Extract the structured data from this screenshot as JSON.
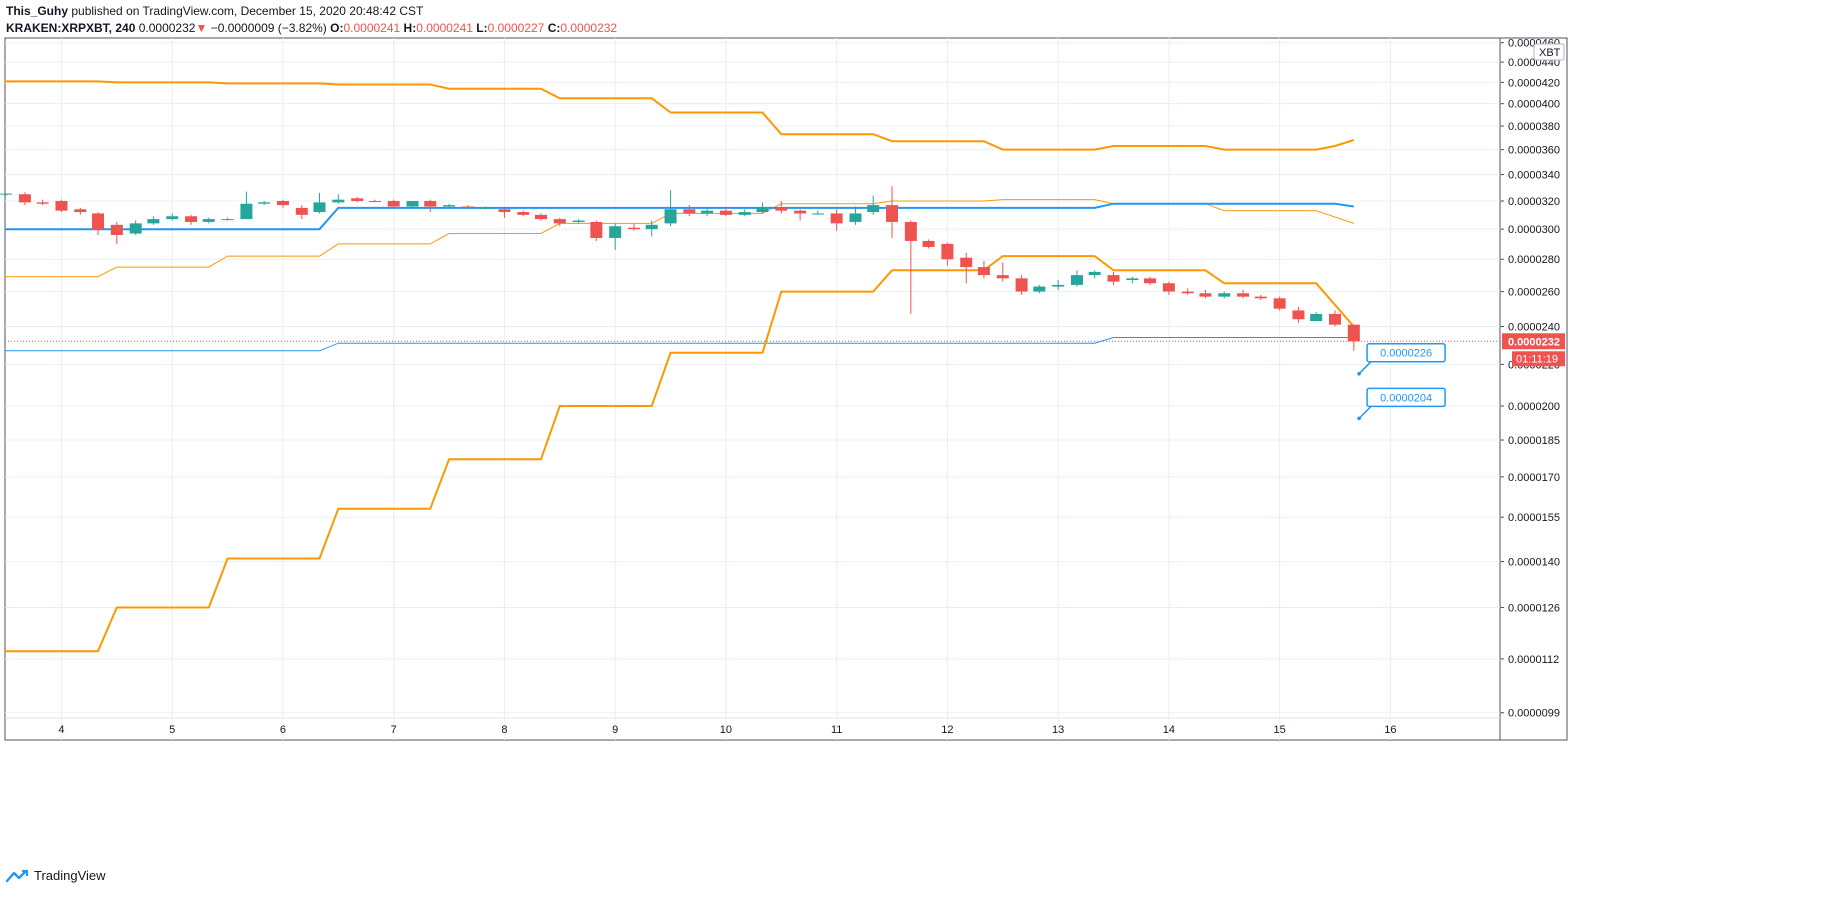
{
  "header": {
    "user": "This_Guhy",
    "published_text": "published on TradingView.com, December 15, 2020 20:48:42 CST",
    "symbol": "KRAKEN:XRPXBT, 240",
    "last": "0.0000232",
    "change_arrow": "▼",
    "change": "−0.0000009 (−3.82%)",
    "o_label": "O:",
    "o_value": "0.0000241",
    "h_label": "H:",
    "h_value": "0.0000241",
    "l_label": "L:",
    "l_value": "0.0000227",
    "c_label": "C:",
    "c_value": "0.0000232"
  },
  "footer": {
    "brand": "TradingView",
    "logo_icon": "tradingview-logo-icon"
  },
  "colors": {
    "up": "#26a69a",
    "down": "#ef5350",
    "orange": "#ff9800",
    "blue": "#2196f3",
    "grid": "#e8f0f3"
  },
  "chart_data": {
    "type": "candlestick",
    "currency_label": "XBT",
    "y_axis_ticks": [
      "0.0000460",
      "0.0000440",
      "0.0000420",
      "0.0000400",
      "0.0000380",
      "0.0000360",
      "0.0000340",
      "0.0000320",
      "0.0000300",
      "0.0000280",
      "0.0000260",
      "0.0000240",
      "0.0000220",
      "0.0000200",
      "0.0000185",
      "0.0000170",
      "0.0000155",
      "0.0000140",
      "0.0000126",
      "0.0000112",
      "0.0000099"
    ],
    "y_axis_tick_values": [
      4.6e-05,
      4.4e-05,
      4.2e-05,
      4e-05,
      3.8e-05,
      3.6e-05,
      3.4e-05,
      3.2e-05,
      3e-05,
      2.8e-05,
      2.6e-05,
      2.4e-05,
      2.2e-05,
      2e-05,
      1.85e-05,
      1.7e-05,
      1.55e-05,
      1.4e-05,
      1.26e-05,
      1.12e-05,
      9.9e-06
    ],
    "x_axis_ticks": [
      "4",
      "5",
      "6",
      "7",
      "8",
      "9",
      "10",
      "11",
      "12",
      "13",
      "14",
      "15",
      "16"
    ],
    "x_axis_tick_days": [
      4,
      5,
      6,
      7,
      8,
      9,
      10,
      11,
      12,
      13,
      14,
      15,
      16
    ],
    "log_scale": true,
    "grid": true,
    "x_range": [
      3.49,
      16.99
    ],
    "y_range": [
      9.3e-06,
      4.65e-05
    ],
    "last_price_label": "0.0000232",
    "countdown_label": "01:11:19",
    "annotations": [
      {
        "text": "0.0000226",
        "day": 15.88,
        "price": 2.26e-05
      },
      {
        "text": "0.0000204",
        "day": 15.88,
        "price": 2.04e-05
      }
    ],
    "candles": [
      {
        "d": 3.5,
        "o": 3.25e-05,
        "h": 3.255e-05,
        "l": 3.24e-05,
        "c": 3.255e-05
      },
      {
        "d": 3.67,
        "o": 3.25e-05,
        "h": 3.265e-05,
        "l": 3.17e-05,
        "c": 3.19e-05
      },
      {
        "d": 3.83,
        "o": 3.19e-05,
        "h": 3.21e-05,
        "l": 3.17e-05,
        "c": 3.18e-05
      },
      {
        "d": 4.0,
        "o": 3.2e-05,
        "h": 3.21e-05,
        "l": 3.12e-05,
        "c": 3.13e-05
      },
      {
        "d": 4.17,
        "o": 3.14e-05,
        "h": 3.15e-05,
        "l": 3.1e-05,
        "c": 3.12e-05
      },
      {
        "d": 4.33,
        "o": 3.11e-05,
        "h": 3.12e-05,
        "l": 2.96e-05,
        "c": 3e-05
      },
      {
        "d": 4.5,
        "o": 3.03e-05,
        "h": 3.05e-05,
        "l": 2.9e-05,
        "c": 2.96e-05
      },
      {
        "d": 4.67,
        "o": 2.97e-05,
        "h": 3.06e-05,
        "l": 2.96e-05,
        "c": 3.04e-05
      },
      {
        "d": 4.83,
        "o": 3.04e-05,
        "h": 3.09e-05,
        "l": 3.03e-05,
        "c": 3.07e-05
      },
      {
        "d": 5.0,
        "o": 3.07e-05,
        "h": 3.11e-05,
        "l": 3.06e-05,
        "c": 3.09e-05
      },
      {
        "d": 5.17,
        "o": 3.09e-05,
        "h": 3.1e-05,
        "l": 3.03e-05,
        "c": 3.05e-05
      },
      {
        "d": 5.33,
        "o": 3.05e-05,
        "h": 3.08e-05,
        "l": 3.04e-05,
        "c": 3.07e-05
      },
      {
        "d": 5.5,
        "o": 3.07e-05,
        "h": 3.08e-05,
        "l": 3.06e-05,
        "c": 3.065e-05
      },
      {
        "d": 5.67,
        "o": 3.07e-05,
        "h": 3.27e-05,
        "l": 3.07e-05,
        "c": 3.18e-05
      },
      {
        "d": 5.83,
        "o": 3.18e-05,
        "h": 3.2e-05,
        "l": 3.17e-05,
        "c": 3.19e-05
      },
      {
        "d": 6.0,
        "o": 3.2e-05,
        "h": 3.21e-05,
        "l": 3.15e-05,
        "c": 3.17e-05
      },
      {
        "d": 6.17,
        "o": 3.15e-05,
        "h": 3.17e-05,
        "l": 3.07e-05,
        "c": 3.1e-05
      },
      {
        "d": 6.33,
        "o": 3.12e-05,
        "h": 3.26e-05,
        "l": 3.11e-05,
        "c": 3.19e-05
      },
      {
        "d": 6.5,
        "o": 3.19e-05,
        "h": 3.25e-05,
        "l": 3.18e-05,
        "c": 3.21e-05
      },
      {
        "d": 6.67,
        "o": 3.22e-05,
        "h": 3.23e-05,
        "l": 3.19e-05,
        "c": 3.2e-05
      },
      {
        "d": 6.83,
        "o": 3.2e-05,
        "h": 3.21e-05,
        "l": 3.19e-05,
        "c": 3.195e-05
      },
      {
        "d": 7.0,
        "o": 3.2e-05,
        "h": 3.21e-05,
        "l": 3.15e-05,
        "c": 3.16e-05
      },
      {
        "d": 7.17,
        "o": 3.16e-05,
        "h": 3.2e-05,
        "l": 3.15e-05,
        "c": 3.2e-05
      },
      {
        "d": 7.33,
        "o": 3.2e-05,
        "h": 3.21e-05,
        "l": 3.12e-05,
        "c": 3.16e-05
      },
      {
        "d": 7.5,
        "o": 3.16e-05,
        "h": 3.18e-05,
        "l": 3.15e-05,
        "c": 3.17e-05
      },
      {
        "d": 7.67,
        "o": 3.16e-05,
        "h": 3.17e-05,
        "l": 3.15e-05,
        "c": 3.155e-05
      },
      {
        "d": 7.83,
        "o": 3.15e-05,
        "h": 3.16e-05,
        "l": 3.14e-05,
        "c": 3.15e-05
      },
      {
        "d": 8.0,
        "o": 3.14e-05,
        "h": 3.15e-05,
        "l": 3.08e-05,
        "c": 3.12e-05
      },
      {
        "d": 8.17,
        "o": 3.12e-05,
        "h": 3.13e-05,
        "l": 3.09e-05,
        "c": 3.1e-05
      },
      {
        "d": 8.33,
        "o": 3.1e-05,
        "h": 3.11e-05,
        "l": 3.06e-05,
        "c": 3.07e-05
      },
      {
        "d": 8.5,
        "o": 3.07e-05,
        "h": 3.08e-05,
        "l": 3.02e-05,
        "c": 3.04e-05
      },
      {
        "d": 8.67,
        "o": 3.05e-05,
        "h": 3.07e-05,
        "l": 3.04e-05,
        "c": 3.06e-05
      },
      {
        "d": 8.83,
        "o": 3.05e-05,
        "h": 3.06e-05,
        "l": 2.92e-05,
        "c": 2.94e-05
      },
      {
        "d": 9.0,
        "o": 2.94e-05,
        "h": 3.04e-05,
        "l": 2.86e-05,
        "c": 3.02e-05
      },
      {
        "d": 9.17,
        "o": 3.01e-05,
        "h": 3.04e-05,
        "l": 2.99e-05,
        "c": 3e-05
      },
      {
        "d": 9.33,
        "o": 3e-05,
        "h": 3.06e-05,
        "l": 2.95e-05,
        "c": 3.03e-05
      },
      {
        "d": 9.5,
        "o": 3.04e-05,
        "h": 3.28e-05,
        "l": 3.02e-05,
        "c": 3.14e-05
      },
      {
        "d": 9.67,
        "o": 3.14e-05,
        "h": 3.17e-05,
        "l": 3.09e-05,
        "c": 3.11e-05
      },
      {
        "d": 9.83,
        "o": 3.11e-05,
        "h": 3.15e-05,
        "l": 3.09e-05,
        "c": 3.13e-05
      },
      {
        "d": 10.0,
        "o": 3.13e-05,
        "h": 3.15e-05,
        "l": 3.09e-05,
        "c": 3.1e-05
      },
      {
        "d": 10.17,
        "o": 3.1e-05,
        "h": 3.14e-05,
        "l": 3.09e-05,
        "c": 3.12e-05
      },
      {
        "d": 10.33,
        "o": 3.12e-05,
        "h": 3.19e-05,
        "l": 3.11e-05,
        "c": 3.15e-05
      },
      {
        "d": 10.5,
        "o": 3.15e-05,
        "h": 3.2e-05,
        "l": 3.11e-05,
        "c": 3.13e-05
      },
      {
        "d": 10.67,
        "o": 3.13e-05,
        "h": 3.14e-05,
        "l": 3.06e-05,
        "c": 3.11e-05
      },
      {
        "d": 10.83,
        "o": 3.11e-05,
        "h": 3.13e-05,
        "l": 3.1e-05,
        "c": 3.11e-05
      },
      {
        "d": 11.0,
        "o": 3.11e-05,
        "h": 3.14e-05,
        "l": 2.99e-05,
        "c": 3.04e-05
      },
      {
        "d": 11.17,
        "o": 3.05e-05,
        "h": 3.16e-05,
        "l": 3.03e-05,
        "c": 3.11e-05
      },
      {
        "d": 11.33,
        "o": 3.12e-05,
        "h": 3.24e-05,
        "l": 3.1e-05,
        "c": 3.17e-05
      },
      {
        "d": 11.5,
        "o": 3.17e-05,
        "h": 3.31e-05,
        "l": 2.94e-05,
        "c": 3.05e-05
      },
      {
        "d": 11.67,
        "o": 3.05e-05,
        "h": 3.06e-05,
        "l": 2.47e-05,
        "c": 2.92e-05
      },
      {
        "d": 11.83,
        "o": 2.92e-05,
        "h": 2.93e-05,
        "l": 2.87e-05,
        "c": 2.88e-05
      },
      {
        "d": 12.0,
        "o": 2.9e-05,
        "h": 2.91e-05,
        "l": 2.76e-05,
        "c": 2.8e-05
      },
      {
        "d": 12.17,
        "o": 2.81e-05,
        "h": 2.84e-05,
        "l": 2.65e-05,
        "c": 2.75e-05
      },
      {
        "d": 12.33,
        "o": 2.75e-05,
        "h": 2.79e-05,
        "l": 2.68e-05,
        "c": 2.7e-05
      },
      {
        "d": 12.5,
        "o": 2.7e-05,
        "h": 2.78e-05,
        "l": 2.66e-05,
        "c": 2.68e-05
      },
      {
        "d": 12.67,
        "o": 2.68e-05,
        "h": 2.7e-05,
        "l": 2.58e-05,
        "c": 2.6e-05
      },
      {
        "d": 12.83,
        "o": 2.6e-05,
        "h": 2.64e-05,
        "l": 2.59e-05,
        "c": 2.63e-05
      },
      {
        "d": 13.0,
        "o": 2.63e-05,
        "h": 2.67e-05,
        "l": 2.61e-05,
        "c": 2.64e-05
      },
      {
        "d": 13.17,
        "o": 2.64e-05,
        "h": 2.73e-05,
        "l": 2.63e-05,
        "c": 2.7e-05
      },
      {
        "d": 13.33,
        "o": 2.7e-05,
        "h": 2.73e-05,
        "l": 2.68e-05,
        "c": 2.72e-05
      },
      {
        "d": 13.5,
        "o": 2.7e-05,
        "h": 2.72e-05,
        "l": 2.64e-05,
        "c": 2.66e-05
      },
      {
        "d": 13.67,
        "o": 2.67e-05,
        "h": 2.69e-05,
        "l": 2.65e-05,
        "c": 2.68e-05
      },
      {
        "d": 13.83,
        "o": 2.68e-05,
        "h": 2.69e-05,
        "l": 2.64e-05,
        "c": 2.65e-05
      },
      {
        "d": 14.0,
        "o": 2.65e-05,
        "h": 2.66e-05,
        "l": 2.58e-05,
        "c": 2.6e-05
      },
      {
        "d": 14.17,
        "o": 2.6e-05,
        "h": 2.62e-05,
        "l": 2.58e-05,
        "c": 2.59e-05
      },
      {
        "d": 14.33,
        "o": 2.59e-05,
        "h": 2.61e-05,
        "l": 2.56e-05,
        "c": 2.57e-05
      },
      {
        "d": 14.5,
        "o": 2.57e-05,
        "h": 2.6e-05,
        "l": 2.56e-05,
        "c": 2.59e-05
      },
      {
        "d": 14.67,
        "o": 2.59e-05,
        "h": 2.61e-05,
        "l": 2.56e-05,
        "c": 2.57e-05
      },
      {
        "d": 14.83,
        "o": 2.57e-05,
        "h": 2.58e-05,
        "l": 2.55e-05,
        "c": 2.56e-05
      },
      {
        "d": 15.0,
        "o": 2.56e-05,
        "h": 2.57e-05,
        "l": 2.49e-05,
        "c": 2.5e-05
      },
      {
        "d": 15.17,
        "o": 2.49e-05,
        "h": 2.51e-05,
        "l": 2.42e-05,
        "c": 2.44e-05
      },
      {
        "d": 15.33,
        "o": 2.43e-05,
        "h": 2.48e-05,
        "l": 2.43e-05,
        "c": 2.47e-05
      },
      {
        "d": 15.5,
        "o": 2.47e-05,
        "h": 2.49e-05,
        "l": 2.4e-05,
        "c": 2.41e-05
      },
      {
        "d": 15.67,
        "o": 2.41e-05,
        "h": 2.41e-05,
        "l": 2.27e-05,
        "c": 2.32e-05
      }
    ],
    "lines": [
      {
        "role": "upper-outer",
        "color": "#ff9800",
        "width": 2,
        "points": [
          [
            3.49,
            4.21e-05
          ],
          [
            4.33,
            4.21e-05
          ],
          [
            4.5,
            4.2e-05
          ],
          [
            5.33,
            4.2e-05
          ],
          [
            5.5,
            4.19e-05
          ],
          [
            6.33,
            4.19e-05
          ],
          [
            6.5,
            4.18e-05
          ],
          [
            7.33,
            4.18e-05
          ],
          [
            7.5,
            4.14e-05
          ],
          [
            8.33,
            4.14e-05
          ],
          [
            8.5,
            4.05e-05
          ],
          [
            9.33,
            4.05e-05
          ],
          [
            9.5,
            3.92e-05
          ],
          [
            10.33,
            3.92e-05
          ],
          [
            10.5,
            3.73e-05
          ],
          [
            11.33,
            3.73e-05
          ],
          [
            11.5,
            3.67e-05
          ],
          [
            12.33,
            3.67e-05
          ],
          [
            12.5,
            3.6e-05
          ],
          [
            13.33,
            3.6e-05
          ],
          [
            13.5,
            3.63e-05
          ],
          [
            14.33,
            3.63e-05
          ],
          [
            14.5,
            3.6e-05
          ],
          [
            15.33,
            3.6e-05
          ],
          [
            15.5,
            3.63e-05
          ],
          [
            15.67,
            3.68e-05
          ]
        ]
      },
      {
        "role": "upper-inner",
        "color": "#ff9800",
        "width": 1,
        "points": [
          [
            3.49,
            2.69e-05
          ],
          [
            4.33,
            2.69e-05
          ],
          [
            4.5,
            2.75e-05
          ],
          [
            5.33,
            2.75e-05
          ],
          [
            5.5,
            2.82e-05
          ],
          [
            6.33,
            2.82e-05
          ],
          [
            6.5,
            2.9e-05
          ],
          [
            7.33,
            2.9e-05
          ],
          [
            7.5,
            2.97e-05
          ],
          [
            8.33,
            2.97e-05
          ],
          [
            8.5,
            3.04e-05
          ],
          [
            9.33,
            3.04e-05
          ],
          [
            9.5,
            3.11e-05
          ],
          [
            10.33,
            3.11e-05
          ],
          [
            10.5,
            3.18e-05
          ],
          [
            11.33,
            3.18e-05
          ],
          [
            11.5,
            3.2e-05
          ],
          [
            12.33,
            3.2e-05
          ],
          [
            12.5,
            3.21e-05
          ],
          [
            13.33,
            3.21e-05
          ],
          [
            13.5,
            3.18e-05
          ],
          [
            14.33,
            3.18e-05
          ],
          [
            14.5,
            3.13e-05
          ],
          [
            15.33,
            3.13e-05
          ],
          [
            15.67,
            3.04e-05
          ]
        ]
      },
      {
        "role": "middle",
        "color": "#2196f3",
        "width": 2,
        "points": [
          [
            3.49,
            3e-05
          ],
          [
            6.33,
            3e-05
          ],
          [
            6.5,
            3.15e-05
          ],
          [
            13.33,
            3.15e-05
          ],
          [
            13.5,
            3.18e-05
          ],
          [
            15.5,
            3.18e-05
          ],
          [
            15.67,
            3.16e-05
          ]
        ]
      },
      {
        "role": "lower-inner",
        "color": "#ff9800",
        "width": 2,
        "points": [
          [
            11.5,
            2.73e-05
          ],
          [
            12.33,
            2.73e-05
          ],
          [
            12.5,
            2.82e-05
          ],
          [
            13.33,
            2.82e-05
          ],
          [
            13.5,
            2.73e-05
          ],
          [
            14.33,
            2.73e-05
          ],
          [
            14.5,
            2.65e-05
          ],
          [
            15.33,
            2.65e-05
          ],
          [
            15.67,
            2.4e-05
          ]
        ]
      },
      {
        "role": "lower-blue",
        "color": "#2196f3",
        "width": 1,
        "points": [
          [
            3.49,
            2.27e-05
          ],
          [
            6.33,
            2.27e-05
          ],
          [
            6.5,
            2.31e-05
          ],
          [
            13.33,
            2.31e-05
          ],
          [
            13.5,
            2.34e-05
          ],
          [
            15.67,
            2.34e-05
          ]
        ]
      },
      {
        "role": "lower-outer",
        "color": "#ff9800",
        "width": 2,
        "points": [
          [
            3.49,
            1.14e-05
          ],
          [
            4.33,
            1.14e-05
          ],
          [
            4.5,
            1.26e-05
          ],
          [
            5.33,
            1.26e-05
          ],
          [
            5.5,
            1.41e-05
          ],
          [
            6.33,
            1.41e-05
          ],
          [
            6.5,
            1.58e-05
          ],
          [
            7.33,
            1.58e-05
          ],
          [
            7.5,
            1.77e-05
          ],
          [
            8.33,
            1.77e-05
          ],
          [
            8.5,
            2e-05
          ],
          [
            9.33,
            2e-05
          ],
          [
            9.5,
            2.26e-05
          ],
          [
            10.33,
            2.26e-05
          ],
          [
            10.5,
            2.6e-05
          ],
          [
            11.33,
            2.6e-05
          ],
          [
            11.5,
            2.73e-05
          ]
        ]
      }
    ]
  }
}
